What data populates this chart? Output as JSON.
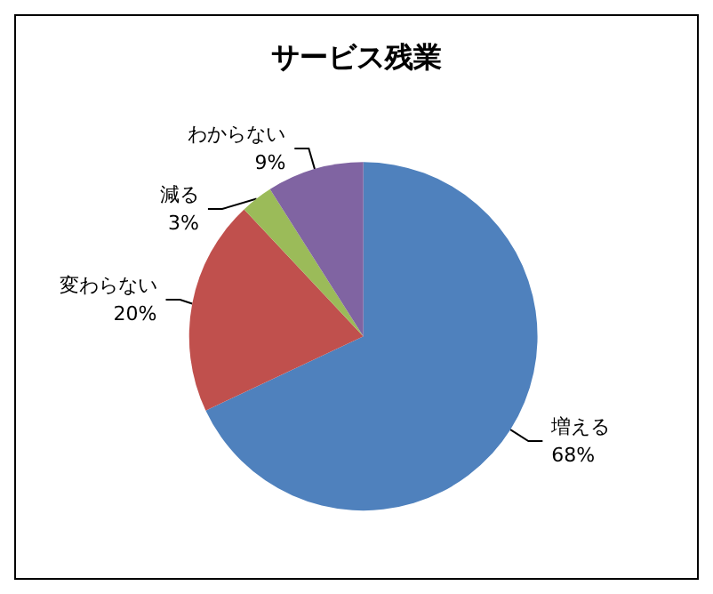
{
  "chart_data": {
    "type": "pie",
    "title": "サービス残業",
    "categories": [
      "増える",
      "変わらない",
      "減る",
      "わからない"
    ],
    "values": [
      68,
      20,
      3,
      9
    ],
    "value_labels": [
      "68%",
      "20%",
      "3%",
      "9%"
    ],
    "colors": [
      "#4f81bd",
      "#c0504d",
      "#9bbb59",
      "#8064a2"
    ],
    "legend": false
  }
}
